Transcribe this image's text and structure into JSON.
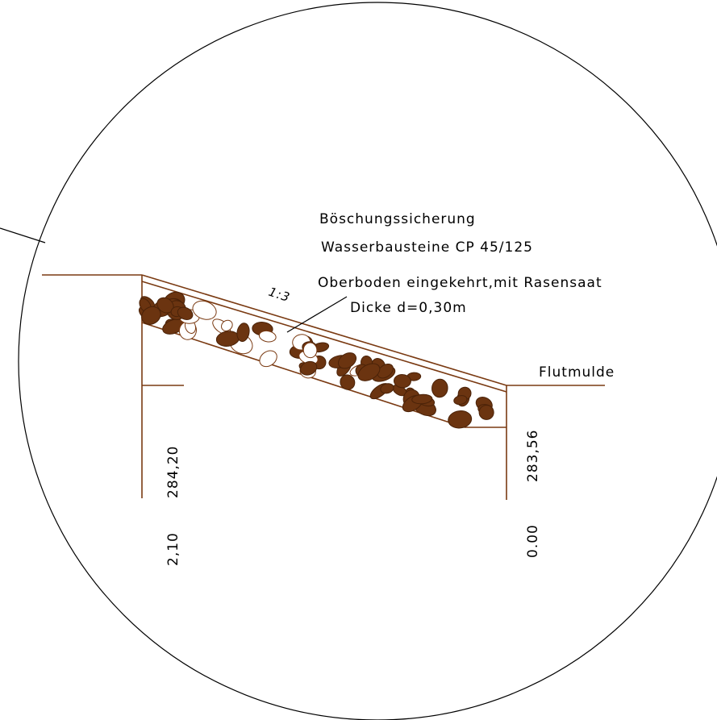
{
  "labels": {
    "title": "Böschungssicherung",
    "material": "Wasserbausteine CP 45/125",
    "surface": "Oberboden eingekehrt,mit Rasensaat",
    "thickness": "Dicke d=0,30m",
    "slope": "1:3",
    "channel": "Flutmulde"
  },
  "dimensions": {
    "left_height": "284,20",
    "left_offset": "2,10",
    "right_height": "283,56",
    "right_offset": "0.00"
  }
}
